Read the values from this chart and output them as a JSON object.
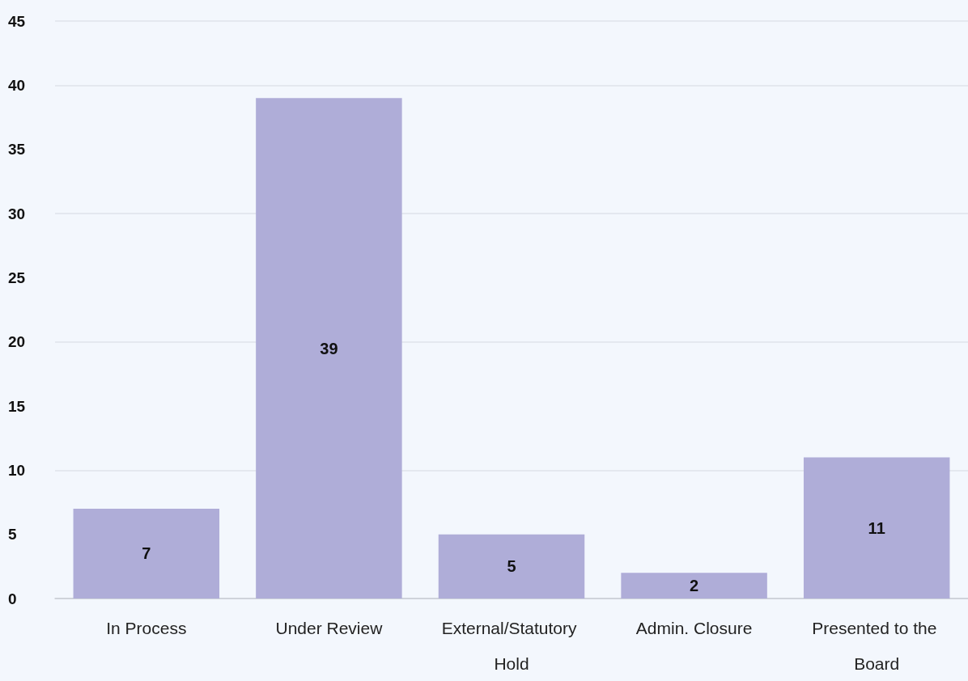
{
  "chart_data": {
    "type": "bar",
    "categories": [
      "In Process",
      "Under Review",
      "External/Statutory Hold",
      "Admin. Closure",
      "Presented to the Board"
    ],
    "values": [
      7,
      39,
      5,
      2,
      11
    ],
    "color": "#afadd8",
    "ylim": [
      0,
      45
    ],
    "yticks": [
      0,
      5,
      10,
      15,
      20,
      25,
      30,
      35,
      40,
      45
    ],
    "grid": "y",
    "data_labels": true
  }
}
